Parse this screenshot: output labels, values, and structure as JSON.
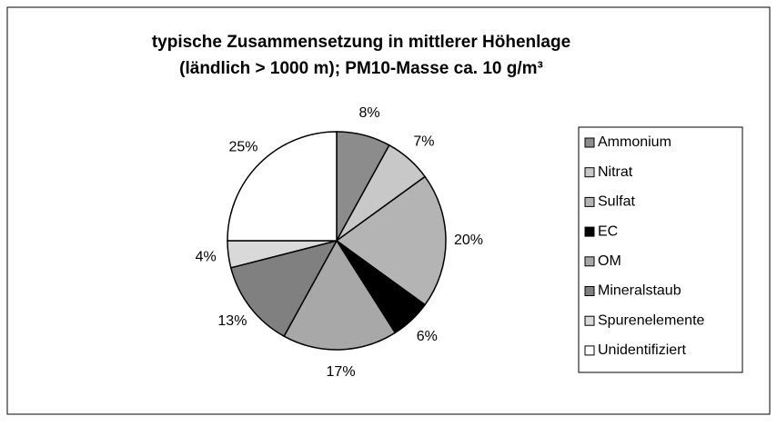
{
  "chart_data": {
    "type": "pie",
    "title": "typische Zusammensetzung in mittlerer Höhenlage",
    "subtitle": "(ländlich > 1000 m); PM10-Masse ca. 10   g/m³",
    "categories": [
      "Ammonium",
      "Nitrat",
      "Sulfat",
      "EC",
      "OM",
      "Mineralstaub",
      "Spurenelemente",
      "Unidentifiziert"
    ],
    "values": [
      8,
      7,
      20,
      6,
      17,
      13,
      4,
      25
    ],
    "value_labels": [
      "8%",
      "7%",
      "20%",
      "6%",
      "17%",
      "13%",
      "4%",
      "25%"
    ],
    "colors": [
      "#8c8c8c",
      "#c8c8c8",
      "#b4b4b4",
      "#000000",
      "#a8a8a8",
      "#808080",
      "#d9d9d9",
      "#ffffff"
    ],
    "legend": "right"
  }
}
